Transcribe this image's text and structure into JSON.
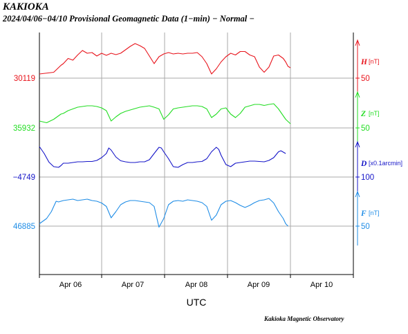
{
  "header": {
    "station": "KAKIOKA",
    "subtitle": "2024/04/06−04/10  Provisional Geomagnetic Data (1−min)  − Normal −"
  },
  "footer": {
    "credit": "Kakioka Magnetic Observatory"
  },
  "chart_data": {
    "type": "line",
    "xlabel": "UTC",
    "x_ticks": [
      "Apr 06",
      "Apr 07",
      "Apr 08",
      "Apr 09",
      "Apr 10"
    ],
    "xlim": [
      "2024-04-05T12:00",
      "2024-04-10T12:00"
    ],
    "grid": true,
    "series": [
      {
        "name": "H",
        "unit": "[nT]",
        "color": "#e8141c",
        "baseline": "30119",
        "scale_value": "50",
        "values": [
          [
            0,
            140
          ],
          [
            6,
            135
          ],
          [
            9,
            115
          ],
          [
            10,
            110
          ],
          [
            12,
            95
          ],
          [
            14,
            100
          ],
          [
            16,
            85
          ],
          [
            18,
            72
          ],
          [
            20,
            80
          ],
          [
            22,
            78
          ],
          [
            24,
            88
          ],
          [
            26,
            80
          ],
          [
            28,
            86
          ],
          [
            30,
            80
          ],
          [
            32,
            84
          ],
          [
            34,
            80
          ],
          [
            36,
            70
          ],
          [
            38,
            60
          ],
          [
            40,
            52
          ],
          [
            42,
            58
          ],
          [
            44,
            66
          ],
          [
            46,
            88
          ],
          [
            48,
            110
          ],
          [
            50,
            90
          ],
          [
            52,
            82
          ],
          [
            54,
            78
          ],
          [
            56,
            82
          ],
          [
            58,
            80
          ],
          [
            60,
            82
          ],
          [
            62,
            80
          ],
          [
            64,
            80
          ],
          [
            66,
            78
          ],
          [
            68,
            90
          ],
          [
            70,
            110
          ],
          [
            72,
            140
          ],
          [
            74,
            125
          ],
          [
            76,
            105
          ],
          [
            78,
            90
          ],
          [
            80,
            80
          ],
          [
            82,
            85
          ],
          [
            84,
            75
          ],
          [
            86,
            75
          ],
          [
            88,
            85
          ],
          [
            90,
            90
          ],
          [
            92,
            120
          ],
          [
            94,
            135
          ],
          [
            96,
            120
          ],
          [
            98,
            88
          ],
          [
            100,
            85
          ],
          [
            102,
            95
          ],
          [
            103,
            105
          ],
          [
            104,
            118
          ],
          [
            105,
            122
          ]
        ]
      },
      {
        "name": "Z",
        "unit": "[nT]",
        "color": "#22dd22",
        "baseline": "35932",
        "scale_value": "50",
        "values": [
          [
            0,
            130
          ],
          [
            3,
            135
          ],
          [
            6,
            125
          ],
          [
            9,
            110
          ],
          [
            10,
            108
          ],
          [
            12,
            100
          ],
          [
            14,
            95
          ],
          [
            16,
            90
          ],
          [
            18,
            88
          ],
          [
            20,
            86
          ],
          [
            22,
            86
          ],
          [
            24,
            88
          ],
          [
            26,
            92
          ],
          [
            28,
            100
          ],
          [
            30,
            130
          ],
          [
            32,
            118
          ],
          [
            34,
            108
          ],
          [
            36,
            102
          ],
          [
            38,
            98
          ],
          [
            40,
            94
          ],
          [
            42,
            90
          ],
          [
            44,
            88
          ],
          [
            46,
            86
          ],
          [
            48,
            90
          ],
          [
            50,
            95
          ],
          [
            52,
            125
          ],
          [
            54,
            112
          ],
          [
            56,
            95
          ],
          [
            58,
            92
          ],
          [
            60,
            90
          ],
          [
            62,
            88
          ],
          [
            64,
            86
          ],
          [
            66,
            86
          ],
          [
            68,
            88
          ],
          [
            70,
            95
          ],
          [
            72,
            120
          ],
          [
            74,
            110
          ],
          [
            76,
            95
          ],
          [
            78,
            92
          ],
          [
            80,
            110
          ],
          [
            82,
            120
          ],
          [
            84,
            108
          ],
          [
            86,
            90
          ],
          [
            88,
            86
          ],
          [
            90,
            82
          ],
          [
            92,
            82
          ],
          [
            94,
            85
          ],
          [
            96,
            82
          ],
          [
            98,
            80
          ],
          [
            100,
            95
          ],
          [
            103,
            125
          ],
          [
            105,
            138
          ]
        ]
      },
      {
        "name": "D",
        "unit": "[x0.1arcmin]",
        "color": "#1414c8",
        "baseline": "−4749",
        "scale_value": "100",
        "values": [
          [
            0,
            60
          ],
          [
            2,
            80
          ],
          [
            4,
            105
          ],
          [
            6,
            118
          ],
          [
            8,
            120
          ],
          [
            9,
            115
          ],
          [
            10,
            108
          ],
          [
            12,
            108
          ],
          [
            14,
            106
          ],
          [
            16,
            104
          ],
          [
            18,
            104
          ],
          [
            20,
            103
          ],
          [
            22,
            103
          ],
          [
            24,
            100
          ],
          [
            26,
            92
          ],
          [
            28,
            80
          ],
          [
            29,
            64
          ],
          [
            30,
            70
          ],
          [
            32,
            90
          ],
          [
            34,
            101
          ],
          [
            36,
            104
          ],
          [
            38,
            106
          ],
          [
            40,
            106
          ],
          [
            42,
            104
          ],
          [
            44,
            104
          ],
          [
            46,
            98
          ],
          [
            48,
            80
          ],
          [
            50,
            62
          ],
          [
            51,
            64
          ],
          [
            52,
            75
          ],
          [
            54,
            95
          ],
          [
            56,
            118
          ],
          [
            58,
            120
          ],
          [
            60,
            112
          ],
          [
            62,
            106
          ],
          [
            64,
            106
          ],
          [
            66,
            104
          ],
          [
            68,
            103
          ],
          [
            70,
            95
          ],
          [
            72,
            75
          ],
          [
            74,
            62
          ],
          [
            75,
            68
          ],
          [
            76,
            85
          ],
          [
            78,
            112
          ],
          [
            80,
            118
          ],
          [
            82,
            108
          ],
          [
            84,
            106
          ],
          [
            86,
            104
          ],
          [
            88,
            102
          ],
          [
            90,
            102
          ],
          [
            92,
            103
          ],
          [
            94,
            104
          ],
          [
            96,
            100
          ],
          [
            98,
            92
          ],
          [
            100,
            75
          ],
          [
            101,
            72
          ],
          [
            103,
            80
          ]
        ]
      },
      {
        "name": "F",
        "unit": "[nT]",
        "color": "#1e8ce6",
        "baseline": "46885",
        "scale_value": "50",
        "values": [
          [
            0,
            145
          ],
          [
            3,
            130
          ],
          [
            5,
            110
          ],
          [
            6,
            95
          ],
          [
            7,
            80
          ],
          [
            8,
            82
          ],
          [
            10,
            78
          ],
          [
            12,
            76
          ],
          [
            14,
            74
          ],
          [
            16,
            78
          ],
          [
            18,
            76
          ],
          [
            20,
            74
          ],
          [
            22,
            78
          ],
          [
            24,
            80
          ],
          [
            26,
            85
          ],
          [
            28,
            95
          ],
          [
            30,
            128
          ],
          [
            32,
            110
          ],
          [
            34,
            90
          ],
          [
            36,
            82
          ],
          [
            38,
            78
          ],
          [
            40,
            78
          ],
          [
            42,
            80
          ],
          [
            44,
            82
          ],
          [
            46,
            84
          ],
          [
            48,
            95
          ],
          [
            50,
            155
          ],
          [
            52,
            130
          ],
          [
            54,
            90
          ],
          [
            56,
            80
          ],
          [
            58,
            78
          ],
          [
            60,
            80
          ],
          [
            62,
            76
          ],
          [
            64,
            78
          ],
          [
            66,
            80
          ],
          [
            68,
            84
          ],
          [
            70,
            95
          ],
          [
            72,
            135
          ],
          [
            74,
            120
          ],
          [
            76,
            90
          ],
          [
            78,
            80
          ],
          [
            80,
            78
          ],
          [
            82,
            84
          ],
          [
            84,
            92
          ],
          [
            86,
            98
          ],
          [
            88,
            92
          ],
          [
            90,
            84
          ],
          [
            92,
            78
          ],
          [
            94,
            76
          ],
          [
            96,
            72
          ],
          [
            98,
            85
          ],
          [
            100,
            110
          ],
          [
            102,
            130
          ],
          [
            103,
            145
          ],
          [
            104,
            152
          ]
        ]
      }
    ]
  }
}
